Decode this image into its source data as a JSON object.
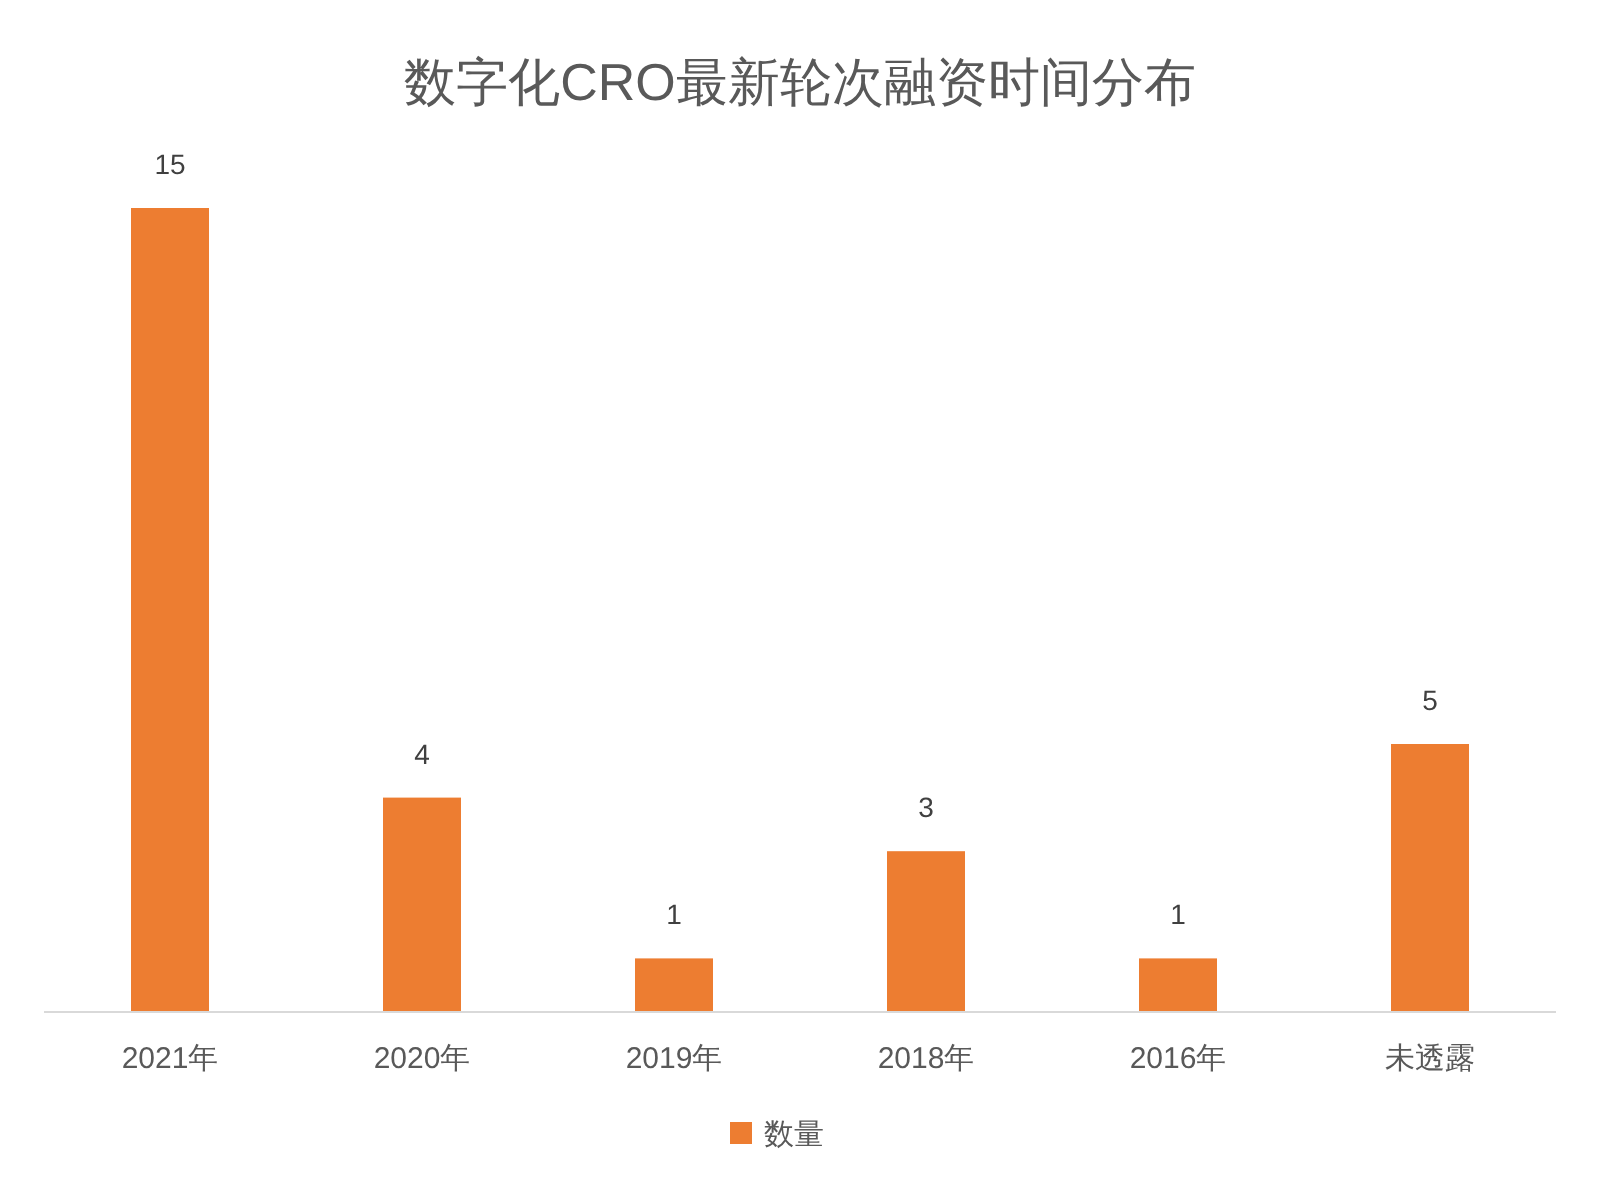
{
  "chart_data": {
    "type": "bar",
    "title": "数字化CRO最新轮次融资时间分布",
    "categories": [
      "2021年",
      "2020年",
      "2019年",
      "2018年",
      "2016年",
      "未透露"
    ],
    "series": [
      {
        "name": "数量",
        "color": "#ed7d31",
        "values": [
          15,
          4,
          1,
          3,
          1,
          5
        ]
      }
    ],
    "data_labels": true,
    "legend": "bottom"
  }
}
